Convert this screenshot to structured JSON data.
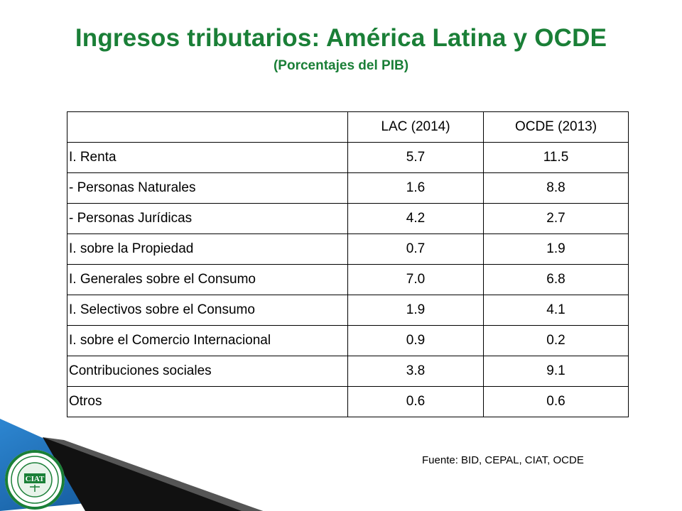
{
  "slide": {
    "title": "Ingresos tributarios: América Latina y OCDE",
    "subtitle": "(Porcentajes del PIB)",
    "source": "Fuente: BID, CEPAL, CIAT, OCDE",
    "logo_text": "CIAT",
    "colors": {
      "title": "#1a7f37",
      "decor_blue": "#1f6fb5",
      "decor_dark": "#111111"
    }
  },
  "table": {
    "headers": [
      "",
      "LAC (2014)",
      "OCDE (2013)"
    ],
    "rows": [
      [
        "I. Renta",
        "5.7",
        "11.5"
      ],
      [
        "- Personas Naturales",
        "1.6",
        "8.8"
      ],
      [
        "- Personas Jurídicas",
        "4.2",
        "2.7"
      ],
      [
        "I. sobre la Propiedad",
        "0.7",
        "1.9"
      ],
      [
        "I. Generales sobre el Consumo",
        "7.0",
        "6.8"
      ],
      [
        "I. Selectivos sobre el Consumo",
        "1.9",
        "4.1"
      ],
      [
        "I. sobre el Comercio Internacional",
        "0.9",
        "0.2"
      ],
      [
        "Contribuciones sociales",
        "3.8",
        "9.1"
      ],
      [
        "Otros",
        "0.6",
        "0.6"
      ]
    ]
  }
}
